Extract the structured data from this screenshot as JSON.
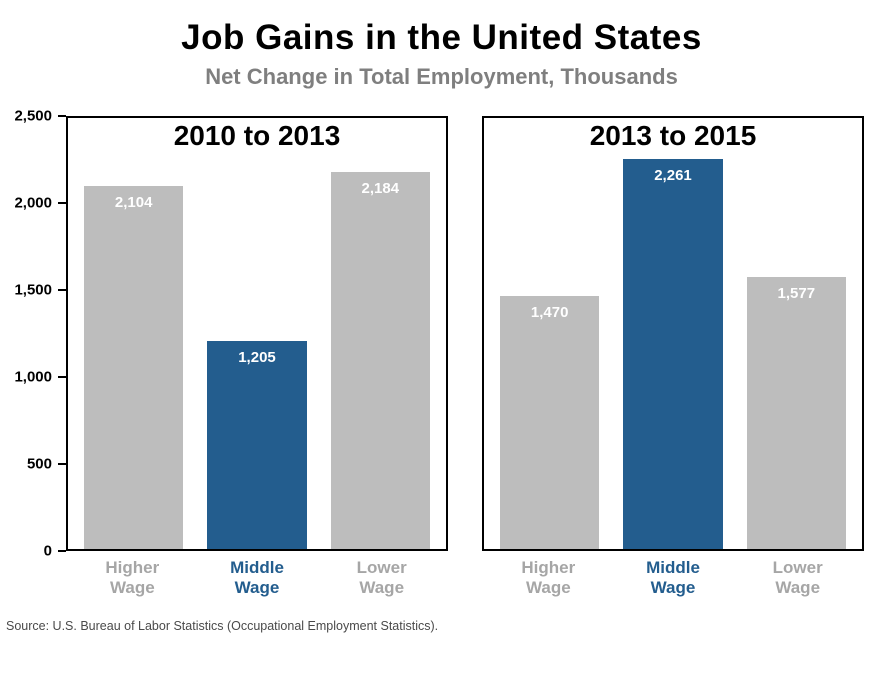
{
  "header": {
    "title": "Job Gains in the United States",
    "subtitle": "Net Change in Total Employment, Thousands"
  },
  "footer": {
    "source": "Source: U.S. Bureau of Labor Statistics (Occupational Employment Statistics)."
  },
  "colors": {
    "bar_gray": "#bdbdbd",
    "bar_blue": "#235d8e",
    "category_gray": "#a6a6a6",
    "subtitle_gray": "#7f7f7f"
  },
  "yaxis": {
    "ticks": [
      "2,500",
      "2,000",
      "1,500",
      "1,000",
      "500",
      "0"
    ]
  },
  "chart_data": [
    {
      "type": "bar",
      "title": "2010 to 2013",
      "categories": [
        "Higher Wage",
        "Middle Wage",
        "Lower Wage"
      ],
      "values": [
        2104,
        1205,
        2184
      ],
      "value_labels": [
        "2,104",
        "1,205",
        "2,184"
      ],
      "bar_color_keys": [
        "bar_gray",
        "bar_blue",
        "bar_gray"
      ],
      "xlabel": "",
      "ylabel": "",
      "ylim": [
        0,
        2500
      ],
      "grid": false,
      "legend": false
    },
    {
      "type": "bar",
      "title": "2013 to 2015",
      "categories": [
        "Higher Wage",
        "Middle Wage",
        "Lower Wage"
      ],
      "values": [
        1470,
        2261,
        1577
      ],
      "value_labels": [
        "1,470",
        "2,261",
        "1,577"
      ],
      "bar_color_keys": [
        "bar_gray",
        "bar_blue",
        "bar_gray"
      ],
      "xlabel": "",
      "ylabel": "",
      "ylim": [
        0,
        2500
      ],
      "grid": false,
      "legend": false
    }
  ]
}
